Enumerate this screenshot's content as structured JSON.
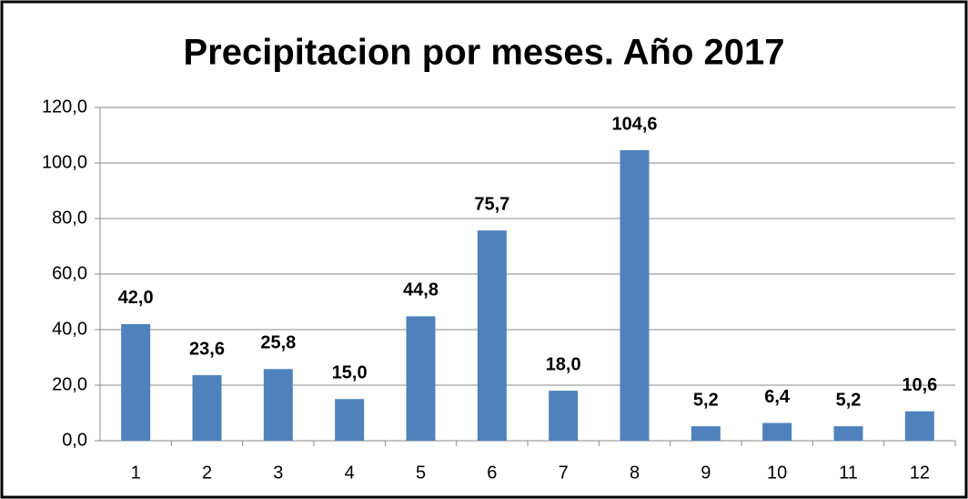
{
  "chart_data": {
    "type": "bar",
    "title": "Precipitacion por meses. Año 2017",
    "categories": [
      "1",
      "2",
      "3",
      "4",
      "5",
      "6",
      "7",
      "8",
      "9",
      "10",
      "11",
      "12"
    ],
    "values": [
      42.0,
      23.6,
      25.8,
      15.0,
      44.8,
      75.7,
      18.0,
      104.6,
      5.2,
      6.4,
      5.2,
      10.6
    ],
    "value_labels": [
      "42,0",
      "23,6",
      "25,8",
      "15,0",
      "44,8",
      "75,7",
      "18,0",
      "104,6",
      "5,2",
      "6,4",
      "5,2",
      "10,6"
    ],
    "color": "#4f81bd",
    "ylim": [
      0,
      120
    ],
    "yticks": [
      {
        "value": 0,
        "label": "0,0"
      },
      {
        "value": 20,
        "label": "20,0"
      },
      {
        "value": 40,
        "label": "40,0"
      },
      {
        "value": 60,
        "label": "60,0"
      },
      {
        "value": 80,
        "label": "80,0"
      },
      {
        "value": 100,
        "label": "100,0"
      },
      {
        "value": 120,
        "label": "120,0"
      }
    ],
    "grid": true
  }
}
